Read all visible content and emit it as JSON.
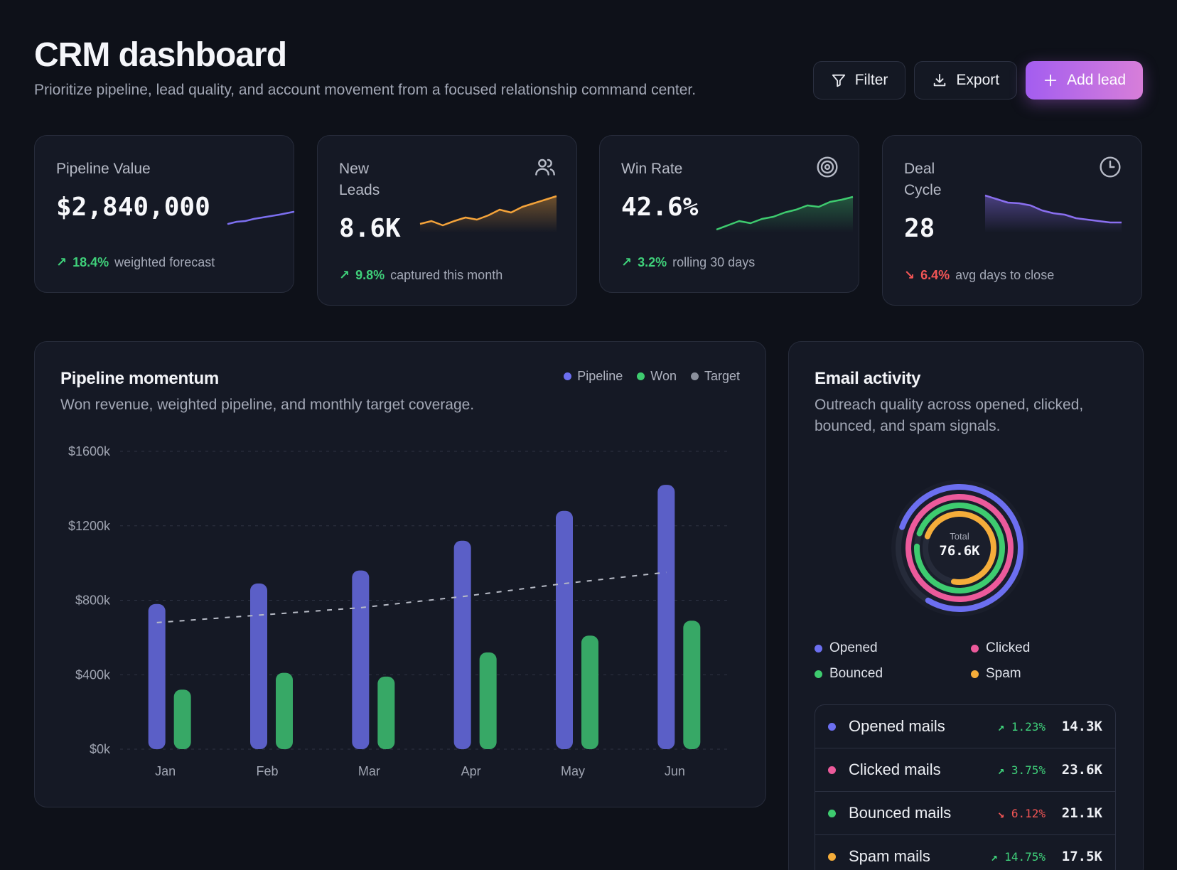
{
  "header": {
    "title": "CRM dashboard",
    "subtitle": "Prioritize pipeline, lead quality, and account movement from a focused relationship command center."
  },
  "actions": {
    "filter_label": "Filter",
    "export_label": "Export",
    "add_label": "Add lead"
  },
  "colors": {
    "pipeline": "#5b5fc7",
    "won": "#37a866",
    "target": "#8a8f9c",
    "opened": "#6c6ff0",
    "clicked": "#ec5a9b",
    "bounced": "#3ecb6f",
    "spam": "#f5ad3a",
    "up": "#3fd07a",
    "down": "#f25555"
  },
  "kpis": [
    {
      "label": "Pipeline Value",
      "value": "$2,840,000",
      "change": "18.4%",
      "direction": "up",
      "note": "weighted forecast",
      "icon": "none"
    },
    {
      "label": "New Leads",
      "value": "8.6K",
      "change": "9.8%",
      "direction": "up",
      "note": "captured this month",
      "icon": "users-icon"
    },
    {
      "label": "Win Rate",
      "value": "42.6%",
      "change": "3.2%",
      "direction": "up",
      "note": "rolling 30 days",
      "icon": "target-icon"
    },
    {
      "label": "Deal Cycle",
      "value": "28",
      "change": "6.4%",
      "direction": "down",
      "note": "avg days to close",
      "icon": "clock-icon"
    }
  ],
  "momentum": {
    "title": "Pipeline momentum",
    "subtitle": "Won revenue, weighted pipeline, and monthly target coverage.",
    "legend": [
      "Pipeline",
      "Won",
      "Target"
    ]
  },
  "chart_data": {
    "type": "bar",
    "categories": [
      "Jan",
      "Feb",
      "Mar",
      "Apr",
      "May",
      "Jun"
    ],
    "series": [
      {
        "name": "Pipeline",
        "values": [
          780,
          890,
          960,
          1120,
          1280,
          1420
        ]
      },
      {
        "name": "Won",
        "values": [
          320,
          410,
          390,
          520,
          610,
          690
        ]
      },
      {
        "name": "Target",
        "values": [
          680,
          720,
          760,
          820,
          890,
          950
        ]
      }
    ],
    "ylim": [
      0,
      1600
    ],
    "yticks": [
      "$0k",
      "$400k",
      "$800k",
      "$1200k",
      "$1600k"
    ],
    "ytick_values": [
      0,
      400,
      800,
      1200,
      1600
    ],
    "grid": true,
    "legend_position": "top-right"
  },
  "email": {
    "title": "Email activity",
    "subtitle_line1": "Outreach quality across opened, clicked,",
    "subtitle_line2": "bounced, and spam signals.",
    "total_label": "Total",
    "total_value": "76.6K",
    "rings": [
      {
        "name": "Opened",
        "fraction": 0.78
      },
      {
        "name": "Clicked",
        "fraction": 1.0
      },
      {
        "name": "Bounced",
        "fraction": 0.95
      },
      {
        "name": "Spam",
        "fraction": 0.72
      }
    ],
    "legend": [
      "Opened",
      "Clicked",
      "Bounced",
      "Spam"
    ],
    "rows": [
      {
        "name": "Opened mails",
        "change": "1.23%",
        "direction": "up",
        "value": "14.3K"
      },
      {
        "name": "Clicked mails",
        "change": "3.75%",
        "direction": "up",
        "value": "23.6K"
      },
      {
        "name": "Bounced mails",
        "change": "6.12%",
        "direction": "down",
        "value": "21.1K"
      },
      {
        "name": "Spam mails",
        "change": "14.75%",
        "direction": "up",
        "value": "17.5K"
      }
    ]
  }
}
